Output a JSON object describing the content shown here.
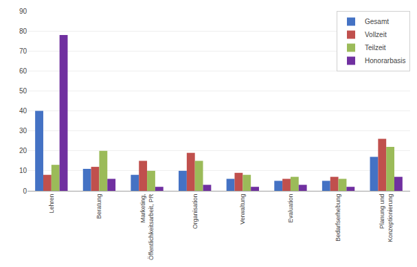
{
  "chart_data": {
    "type": "bar",
    "categories": [
      "Lehren",
      "Beratung",
      "Marketing,\nÖffentlichkeitsarbeit, PR",
      "Organisation",
      "Verwaltung",
      "Evaluation",
      "Bedarfserhebung",
      "Planung und\nKonzeptionierung"
    ],
    "series": [
      {
        "name": "Gesamt",
        "color": "#4472C4",
        "values": [
          40,
          11,
          8,
          10,
          6,
          5,
          5,
          17
        ]
      },
      {
        "name": "Vollzeit",
        "color": "#C0504D",
        "values": [
          8,
          12,
          15,
          19,
          9,
          6,
          7,
          26
        ]
      },
      {
        "name": "Teilzeit",
        "color": "#9BBB59",
        "values": [
          13,
          20,
          10,
          15,
          8,
          7,
          6,
          22
        ]
      },
      {
        "name": "Honorarbasis",
        "color": "#7030A0",
        "values": [
          78,
          6,
          2,
          3,
          2,
          3,
          2,
          7
        ]
      }
    ],
    "ylim": [
      0,
      90
    ],
    "yticks": [
      0,
      10,
      20,
      30,
      40,
      50,
      60,
      70,
      80,
      90
    ],
    "grid": true,
    "legend": "upper right"
  }
}
